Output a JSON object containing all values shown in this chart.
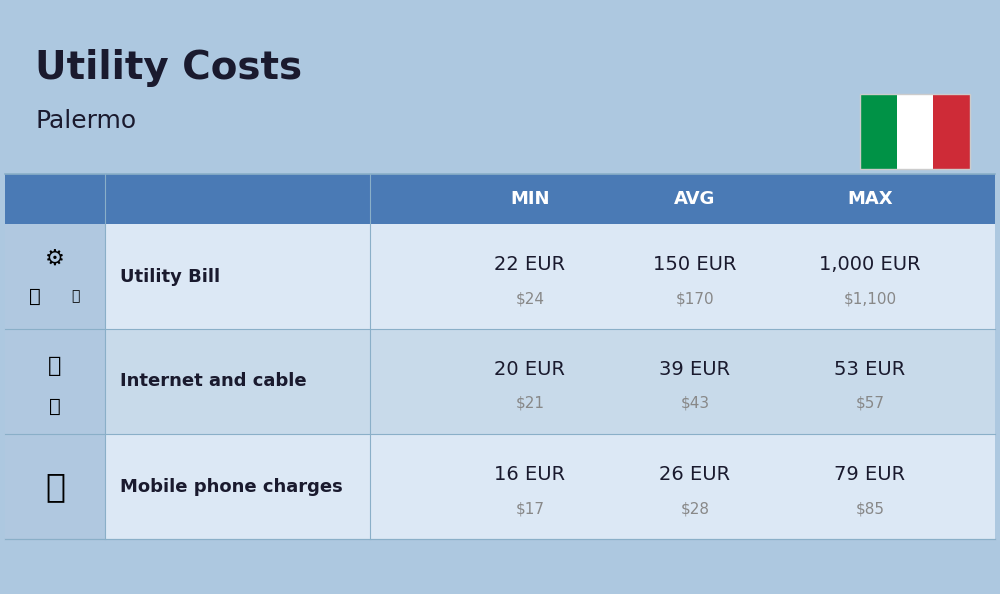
{
  "title": "Utility Costs",
  "subtitle": "Palermo",
  "background_color": "#adc8e0",
  "header_bg_color": "#4a7ab5",
  "header_text_color": "#ffffff",
  "row_colors": [
    "#dce8f5",
    "#c8daea"
  ],
  "icon_col_color": "#b0c8e0",
  "text_color": "#1a1a2e",
  "sub_value_color": "#888888",
  "columns": [
    "MIN",
    "AVG",
    "MAX"
  ],
  "rows": [
    {
      "label": "Utility Bill",
      "icon_placeholder": "utility",
      "min_eur": "22 EUR",
      "min_usd": "$24",
      "avg_eur": "150 EUR",
      "avg_usd": "$170",
      "max_eur": "1,000 EUR",
      "max_usd": "$1,100"
    },
    {
      "label": "Internet and cable",
      "icon_placeholder": "internet",
      "min_eur": "20 EUR",
      "min_usd": "$21",
      "avg_eur": "39 EUR",
      "avg_usd": "$43",
      "max_eur": "53 EUR",
      "max_usd": "$57"
    },
    {
      "label": "Mobile phone charges",
      "icon_placeholder": "mobile",
      "min_eur": "16 EUR",
      "min_usd": "$17",
      "avg_eur": "26 EUR",
      "avg_usd": "$28",
      "max_eur": "79 EUR",
      "max_usd": "$85"
    }
  ],
  "flag_colors": [
    "#009246",
    "#ffffff",
    "#ce2b37"
  ],
  "title_fontsize": 28,
  "subtitle_fontsize": 18,
  "header_fontsize": 13,
  "label_fontsize": 13,
  "value_fontsize": 14,
  "sub_value_fontsize": 11
}
